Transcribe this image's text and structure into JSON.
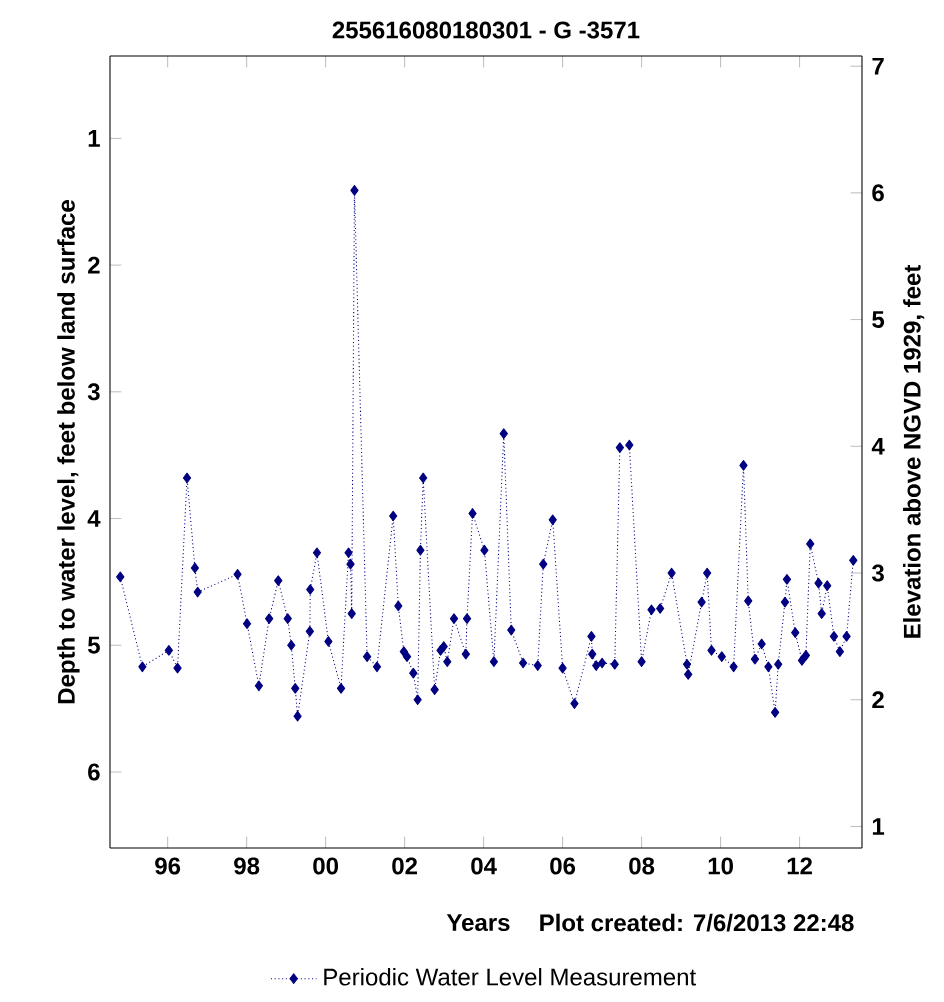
{
  "chart_data": {
    "type": "line",
    "title": "255616080180301 - G -3571",
    "xlabel": "Years",
    "ylabel": "Depth to water level, feet below land surface",
    "y2label": "Elevation above NGVD 1929, feet",
    "annotations": [
      "Plot created: 7/6/2013 22:48"
    ],
    "x": [
      1994.8,
      1995.36,
      1996.03,
      1996.25,
      1996.49,
      1996.69,
      1996.76,
      1997.77,
      1998.01,
      1998.31,
      1998.57,
      1998.8,
      1999.04,
      1999.13,
      1999.23,
      1999.29,
      1999.6,
      1999.61,
      1999.78,
      2000.07,
      2000.39,
      2000.58,
      2000.63,
      2000.66,
      2000.73,
      2001.05,
      2001.3,
      2001.71,
      2001.84,
      2001.98,
      2002.06,
      2002.22,
      2002.33,
      2002.4,
      2002.47,
      2002.76,
      2002.91,
      2002.99,
      2003.08,
      2003.25,
      2003.55,
      2003.58,
      2003.72,
      2004.02,
      2004.26,
      2004.51,
      2004.7,
      2005.0,
      2005.37,
      2005.51,
      2005.75,
      2006.0,
      2006.3,
      2006.73,
      2006.75,
      2006.85,
      2007.0,
      2007.32,
      2007.45,
      2007.69,
      2008.0,
      2008.25,
      2008.47,
      2008.76,
      2009.15,
      2009.18,
      2009.52,
      2009.66,
      2009.77,
      2010.03,
      2010.33,
      2010.58,
      2010.7,
      2010.87,
      2011.04,
      2011.21,
      2011.38,
      2011.46,
      2011.63,
      2011.68,
      2011.89,
      2012.06,
      2012.16,
      2012.27,
      2012.48,
      2012.56,
      2012.7,
      2012.87,
      2013.02,
      2013.19,
      2013.36
    ],
    "series": [
      {
        "name": "Periodic Water Level Measurement",
        "color": "#000080",
        "values": [
          4.46,
          5.17,
          5.04,
          5.18,
          3.68,
          4.39,
          4.58,
          4.44,
          4.83,
          5.32,
          4.79,
          4.49,
          4.79,
          5.0,
          5.34,
          5.56,
          4.89,
          4.56,
          4.27,
          4.97,
          5.34,
          4.27,
          4.36,
          4.75,
          1.41,
          5.09,
          5.17,
          3.98,
          4.69,
          5.05,
          5.09,
          5.22,
          5.43,
          4.25,
          3.68,
          5.35,
          5.04,
          5.01,
          5.13,
          4.79,
          5.07,
          4.79,
          3.96,
          4.25,
          5.13,
          3.33,
          4.88,
          5.14,
          5.16,
          4.36,
          4.01,
          5.18,
          5.46,
          4.93,
          5.07,
          5.16,
          5.14,
          5.15,
          3.44,
          3.42,
          5.13,
          4.72,
          4.71,
          4.43,
          5.15,
          5.23,
          4.66,
          4.43,
          5.04,
          5.09,
          5.17,
          3.58,
          4.65,
          5.11,
          4.99,
          5.17,
          5.53,
          5.15,
          4.66,
          4.48,
          4.9,
          5.12,
          5.08,
          4.2,
          4.51,
          4.75,
          4.53,
          4.93,
          5.05,
          4.93,
          4.33
        ]
      }
    ],
    "xlim": [
      1994.54,
      2013.58
    ],
    "xticks": [
      {
        "value": 1996,
        "label": "96"
      },
      {
        "value": 1998,
        "label": "98"
      },
      {
        "value": 2000,
        "label": "00"
      },
      {
        "value": 2002,
        "label": "02"
      },
      {
        "value": 2004,
        "label": "04"
      },
      {
        "value": 2006,
        "label": "06"
      },
      {
        "value": 2008,
        "label": "08"
      },
      {
        "value": 2010,
        "label": "10"
      },
      {
        "value": 2012,
        "label": "12"
      }
    ],
    "ylim": [
      6.6,
      0.35
    ],
    "yticks": [
      1,
      2,
      3,
      4,
      5,
      6
    ],
    "y2lim": [
      0.83,
      7.08
    ],
    "y2ticks": [
      1,
      2,
      3,
      4,
      5,
      6,
      7
    ],
    "marker": "diamond",
    "line_style": "dotted",
    "legend": "bottom"
  }
}
